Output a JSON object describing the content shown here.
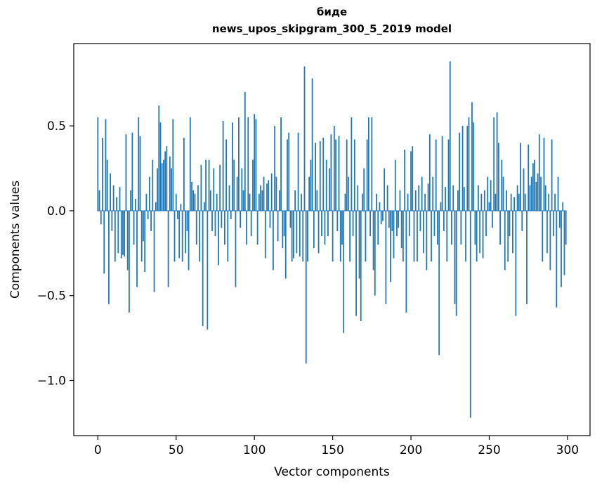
{
  "chart_data": {
    "type": "bar",
    "title": "биде",
    "subtitle": "news_upos_skipgram_300_5_2019 model",
    "xlabel": "Vector components",
    "ylabel": "Components values",
    "xlim": [
      -15.4,
      314.4
    ],
    "ylim": [
      -1.325,
      0.985
    ],
    "grid": false,
    "legend": "none",
    "bar_color": "#1f77b4",
    "axis_color": "#000000",
    "xticks": [
      0,
      50,
      100,
      150,
      200,
      250,
      300
    ],
    "xtick_labels": [
      "0",
      "50",
      "100",
      "150",
      "200",
      "250",
      "300"
    ],
    "ytick_values": [
      0.5,
      0.0,
      -0.5,
      -1.0
    ],
    "ytick_labels": [
      "0.5",
      "0.0",
      "−0.5",
      "−1.0"
    ],
    "values": [
      0.55,
      0.12,
      -0.08,
      0.43,
      -0.37,
      0.54,
      0.3,
      -0.55,
      0.22,
      -0.12,
      0.15,
      -0.3,
      0.08,
      -0.25,
      0.14,
      -0.28,
      -0.26,
      -0.27,
      0.45,
      -0.35,
      -0.6,
      0.12,
      0.46,
      -0.2,
      0.07,
      -0.45,
      0.55,
      0.44,
      -0.3,
      -0.18,
      -0.36,
      0.1,
      -0.05,
      0.2,
      -0.12,
      0.3,
      -0.48,
      0.05,
      0.25,
      0.62,
      0.52,
      0.28,
      0.3,
      0.35,
      0.38,
      -0.45,
      0.32,
      0.25,
      0.54,
      -0.3,
      0.1,
      -0.05,
      -0.28,
      0.04,
      -0.3,
      0.43,
      -0.25,
      -0.12,
      -0.35,
      0.55,
      0.17,
      0.12,
      0.1,
      -0.2,
      0.15,
      -0.3,
      0.27,
      -0.68,
      0.05,
      0.3,
      -0.7,
      0.3,
      0.12,
      -0.12,
      0.25,
      -0.15,
      0.1,
      -0.32,
      0.27,
      -0.1,
      0.53,
      -0.2,
      0.42,
      -0.3,
      0.15,
      -0.05,
      0.52,
      0.3,
      -0.45,
      0.2,
      0.55,
      -0.1,
      0.25,
      0.12,
      0.7,
      -0.2,
      0.55,
      0.1,
      -0.15,
      0.3,
      0.57,
      0.54,
      -0.2,
      0.1,
      0.15,
      0.12,
      0.2,
      -0.28,
      0.16,
      0.18,
      -0.1,
      0.22,
      -0.35,
      0.5,
      0.2,
      -0.18,
      0.12,
      0.55,
      -0.22,
      -0.15,
      -0.4,
      0.42,
      0.46,
      -0.1,
      -0.3,
      -0.28,
      0.12,
      -0.25,
      0.46,
      -0.27,
      0.1,
      -0.3,
      0.85,
      -0.9,
      -0.3,
      0.2,
      0.3,
      0.78,
      -0.22,
      0.4,
      0.12,
      -0.25,
      0.41,
      -0.15,
      0.43,
      -0.2,
      0.3,
      -0.15,
      0.25,
      0.45,
      -0.3,
      0.5,
      0.42,
      -0.12,
      0.44,
      -0.3,
      -0.2,
      -0.72,
      0.1,
      0.42,
      0.2,
      -0.3,
      0.55,
      -0.15,
      0.42,
      -0.62,
      0.15,
      -0.4,
      -0.65,
      0.1,
      0.25,
      -0.3,
      0.42,
      0.55,
      -0.15,
      0.55,
      -0.35,
      -0.5,
      0.1,
      -0.2,
      0.05,
      -0.08,
      -0.06,
      0.25,
      -0.55,
      0.15,
      -0.1,
      -0.42,
      -0.12,
      -0.28,
      0.3,
      -0.15,
      -0.1,
      0.12,
      -0.22,
      -0.3,
      0.36,
      -0.6,
      0.1,
      -0.15,
      0.35,
      0.38,
      -0.3,
      0.12,
      -0.3,
      0.15,
      -0.12,
      0.2,
      -0.25,
      0.1,
      -0.35,
      0.16,
      0.45,
      -0.3,
      0.2,
      -0.15,
      0.42,
      -0.2,
      -0.85,
      0.05,
      0.44,
      -0.12,
      0.14,
      -0.3,
      0.42,
      0.88,
      -0.2,
      0.15,
      -0.55,
      -0.62,
      0.12,
      0.46,
      -0.2,
      0.5,
      0.14,
      -0.3,
      0.5,
      0.55,
      -1.22,
      0.64,
      0.52,
      -0.2,
      -0.3,
      0.15,
      -0.25,
      0.1,
      -0.28,
      0.12,
      -0.15,
      0.2,
      0.05,
      0.18,
      -0.1,
      0.55,
      0.1,
      0.58,
      0.4,
      -0.2,
      0.3,
      0.2,
      -0.35,
      0.12,
      -0.3,
      -0.15,
      0.1,
      -0.25,
      0.08,
      -0.62,
      0.15,
      0.1,
      0.4,
      -0.12,
      0.25,
      0.1,
      -0.55,
      0.39,
      0.15,
      0.2,
      0.28,
      0.3,
      0.17,
      0.22,
      0.45,
      0.2,
      -0.3,
      0.43,
      0.15,
      -0.25,
      0.1,
      -0.35,
      0.42,
      -0.15,
      0.1,
      -0.57,
      0.2,
      -0.1,
      -0.45,
      0.05,
      -0.38,
      -0.2
    ]
  }
}
